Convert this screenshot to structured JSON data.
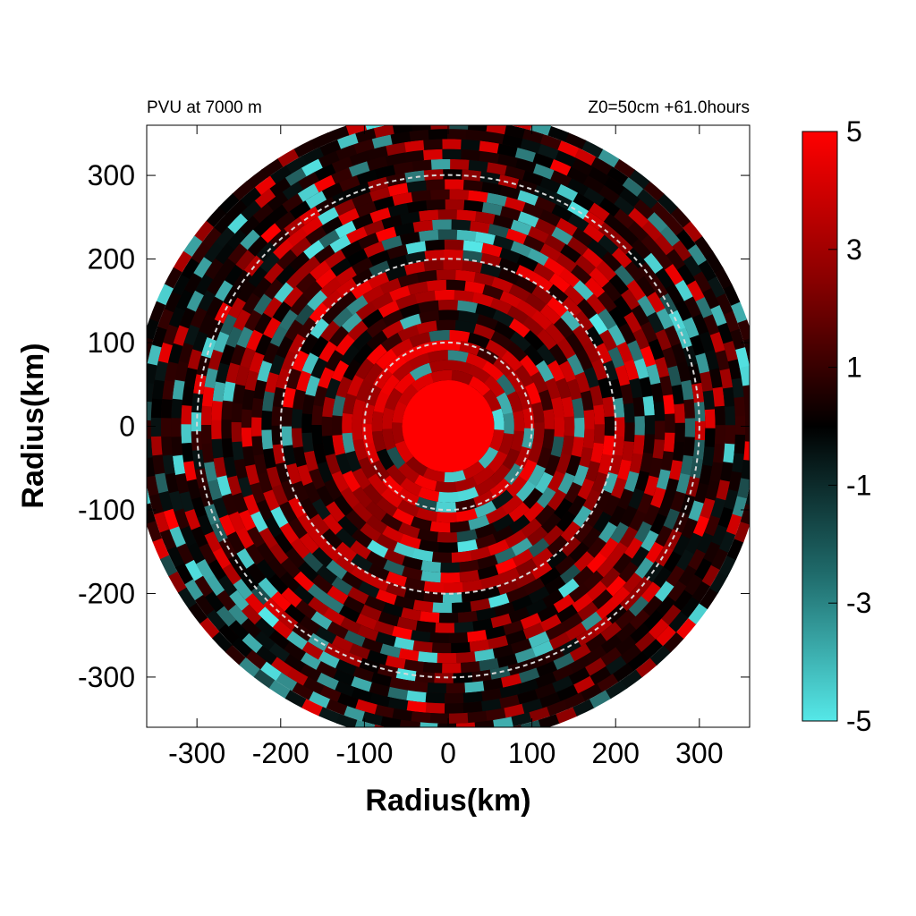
{
  "header": {
    "left": "PVU at  7000 m",
    "right": "Z0=50cm  +61.0hours"
  },
  "chart_data": {
    "type": "heatmap",
    "projection": "polar field on cartesian grid",
    "field": "PVU at 7000 m",
    "xlabel": "Radius(km)",
    "ylabel": "Radius(km)",
    "xlim": [
      -360,
      360
    ],
    "ylim": [
      -360,
      360
    ],
    "x_ticks": [
      -300,
      -200,
      -100,
      0,
      100,
      200,
      300
    ],
    "y_ticks": [
      300,
      200,
      100,
      0,
      -100,
      -200,
      -300
    ],
    "domain_radius_km": 360,
    "reference_circles_km": [
      100,
      200,
      300
    ],
    "reference_circle_style": "dashed light gray",
    "colorbar": {
      "range": [
        -5,
        5
      ],
      "ticks": [
        5,
        3,
        1,
        -1,
        -3,
        -5
      ],
      "colors": {
        "max": "#ff0000",
        "mid": "#000000",
        "min": "#55e8e8"
      }
    },
    "core": {
      "radius_km": 55,
      "value": 5
    },
    "rings": [
      {
        "r_inner": 55,
        "r_outer": 110,
        "red_fraction": 0.85,
        "cyan_fraction": 0.1
      },
      {
        "r_inner": 110,
        "r_outer": 200,
        "red_fraction": 0.55,
        "cyan_fraction": 0.12
      },
      {
        "r_inner": 200,
        "r_outer": 300,
        "red_fraction": 0.35,
        "cyan_fraction": 0.2
      },
      {
        "r_inner": 300,
        "r_outer": 360,
        "red_fraction": 0.15,
        "cyan_fraction": 0.15
      }
    ]
  }
}
